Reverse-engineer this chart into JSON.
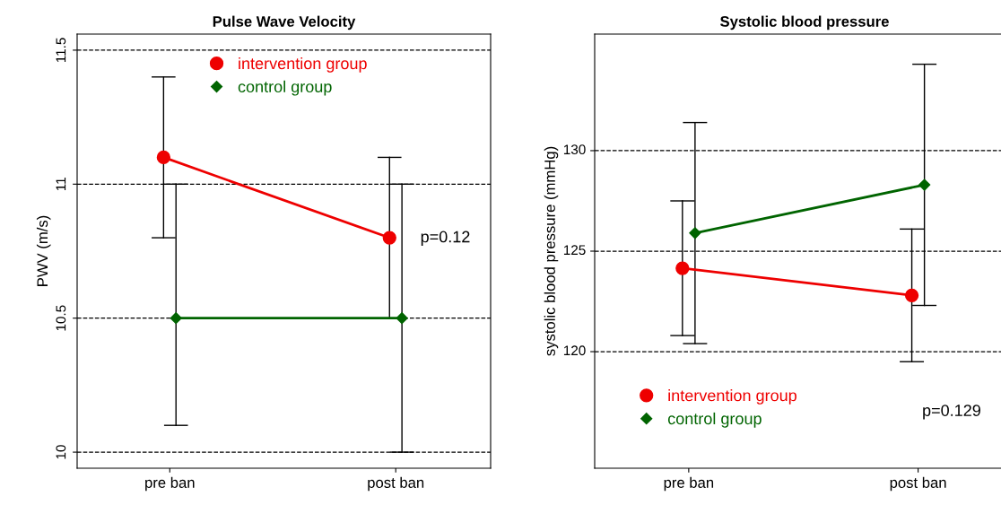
{
  "chart_data": [
    {
      "type": "line",
      "title": "Pulse Wave Velocity",
      "ylabel": "PWV (m/s)",
      "categories": [
        "pre ban",
        "post ban"
      ],
      "ylim": [
        9.94,
        11.56
      ],
      "yticks": [
        10,
        10.5,
        11,
        11.5
      ],
      "grid": "y",
      "legend": "top",
      "annotations": [
        "p=0.12"
      ],
      "series": [
        {
          "name": "intervention group",
          "color": "#ee0000",
          "marker": "circle",
          "values": [
            11.1,
            10.8
          ],
          "errors": [
            [
              10.8,
              11.4
            ],
            [
              10.5,
              11.1
            ]
          ]
        },
        {
          "name": "control group",
          "color": "#006400",
          "marker": "diamond",
          "values": [
            10.5,
            10.5
          ],
          "errors": [
            [
              10.1,
              11.0
            ],
            [
              10.0,
              11.0
            ]
          ]
        }
      ]
    },
    {
      "type": "line",
      "title": "Systolic blood pressure",
      "ylabel": "systolic blood pressure (mmHg)",
      "categories": [
        "pre ban",
        "post ban"
      ],
      "ylim": [
        114.2,
        135.8
      ],
      "yticks": [
        120,
        125,
        130
      ],
      "grid": "y",
      "legend": "bottom left",
      "annotations": [
        "p=0.129"
      ],
      "series": [
        {
          "name": "intervention group",
          "color": "#ee0000",
          "marker": "circle",
          "values": [
            124.15,
            122.8
          ],
          "errors": [
            [
              120.8,
              127.5
            ],
            [
              119.5,
              126.1
            ]
          ]
        },
        {
          "name": "control group",
          "color": "#006400",
          "marker": "diamond",
          "values": [
            125.9,
            128.3
          ],
          "errors": [
            [
              120.4,
              131.4
            ],
            [
              122.3,
              134.3
            ]
          ]
        }
      ]
    }
  ]
}
